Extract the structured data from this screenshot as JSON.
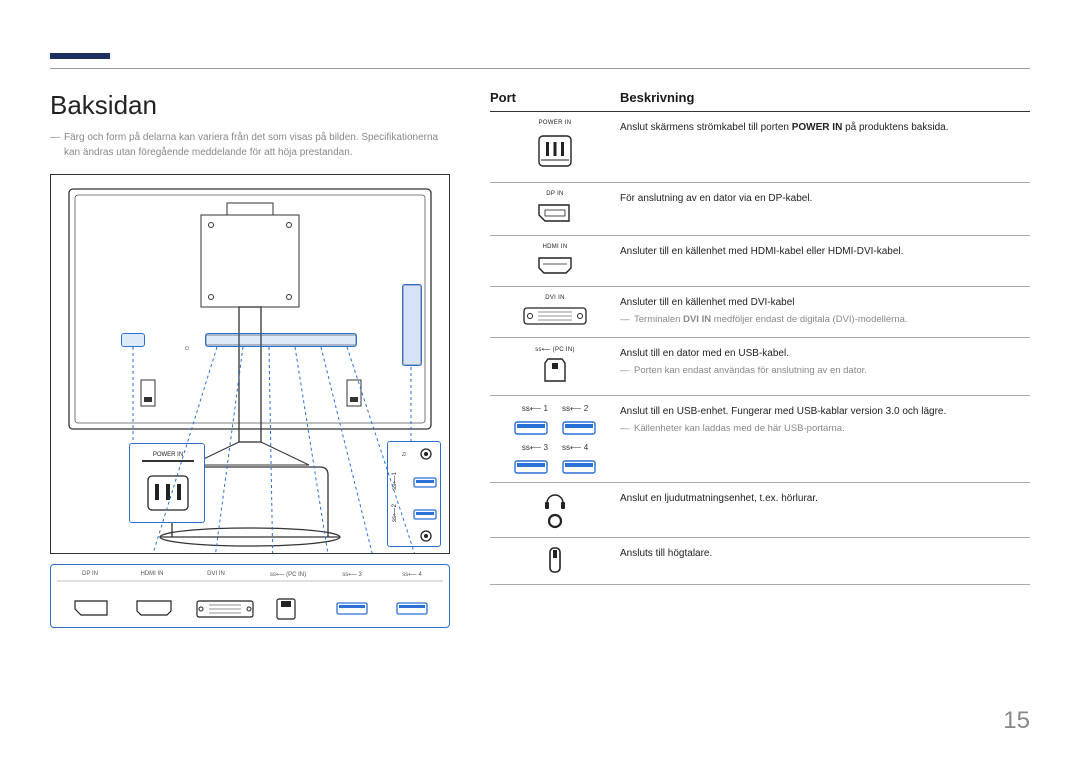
{
  "page_number": "15",
  "title": "Baksidan",
  "caption": "Färg och form på delarna kan variera från det som visas på bilden. Specifikationerna kan ändras utan föregående meddelande för att höja prestandan.",
  "table": {
    "header_port": "Port",
    "header_desc": "Beskrivning",
    "rows": [
      {
        "label": "POWER IN",
        "desc_html": "Anslut skärmens strömkabel till porten <b>POWER IN</b> på produktens baksida.",
        "note": ""
      },
      {
        "label": "DP IN",
        "desc_html": "För anslutning av en dator via en DP-kabel.",
        "note": ""
      },
      {
        "label": "HDMI IN",
        "desc_html": "Ansluter till en källenhet med HDMI-kabel eller HDMI-DVI-kabel.",
        "note": ""
      },
      {
        "label": "DVI IN",
        "desc_html": "Ansluter till en källenhet med DVI-kabel",
        "note": "Terminalen <b>DVI IN</b> medföljer endast de digitala (DVI)-modellerna."
      },
      {
        "label": "ss⟵ (PC IN)",
        "desc_html": "Anslut till en dator med en USB-kabel.",
        "note": "Porten kan endast användas för anslutning av en dator."
      },
      {
        "label_pairs": [
          "ss⟵ 1",
          "ss⟵ 2",
          "ss⟵ 3",
          "ss⟵ 4"
        ],
        "desc_html": "Anslut till en USB-enhet. Fungerar med USB-kablar version 3.0 och lägre.",
        "note": "Källenheter kan laddas med de här USB-portarna."
      },
      {
        "label": "",
        "icon": "headphone",
        "desc_html": "Anslut en ljudutmatningsenhet, t.ex. hörlurar.",
        "note": ""
      },
      {
        "label": "",
        "icon": "speaker",
        "desc_html": "Ansluts till högtalare.",
        "note": ""
      }
    ]
  },
  "panel_labels": [
    "DP IN",
    "HDMI IN",
    "DVI IN",
    "ss⟵ (PC IN)",
    "ss⟵ 3",
    "ss⟵ 4"
  ],
  "colors": {
    "accent": "#1c2f5e",
    "callout": "#2a6fd6",
    "text_muted": "#888888",
    "rule": "#999999"
  }
}
